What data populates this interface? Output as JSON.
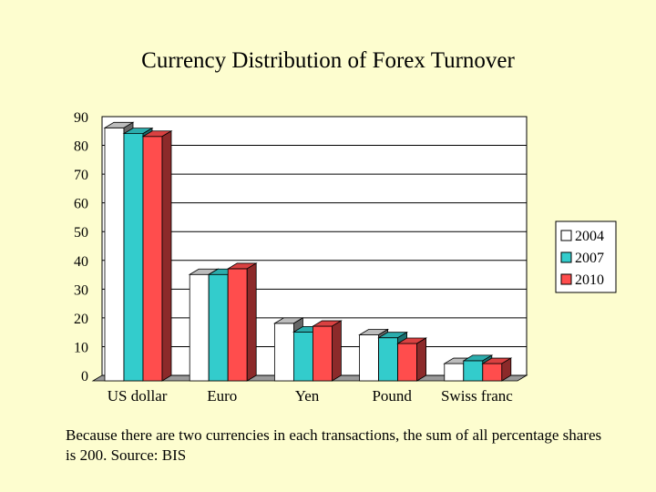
{
  "chart_data": {
    "type": "bar",
    "title": "Currency Distribution of Forex Turnover",
    "categories": [
      "US dollar",
      "Euro",
      "Yen",
      "Pound",
      "Swiss franc"
    ],
    "series": [
      {
        "name": "2004",
        "values": [
          88,
          37,
          20,
          16,
          6
        ],
        "color": "#ffffff"
      },
      {
        "name": "2007",
        "values": [
          86,
          37,
          17,
          15,
          7
        ],
        "color": "#33cccc"
      },
      {
        "name": "2010",
        "values": [
          85,
          39,
          19,
          13,
          6
        ],
        "color": "#ff4d4d"
      }
    ],
    "ylim": [
      0,
      90
    ],
    "yticks": [
      0,
      10,
      20,
      30,
      40,
      50,
      60,
      70,
      80,
      90
    ],
    "grid": true,
    "legend": "right",
    "three_d": true
  },
  "footnote": "Because there are two currencies in each transactions, the sum of all percentage shares is 200. Source: BIS"
}
